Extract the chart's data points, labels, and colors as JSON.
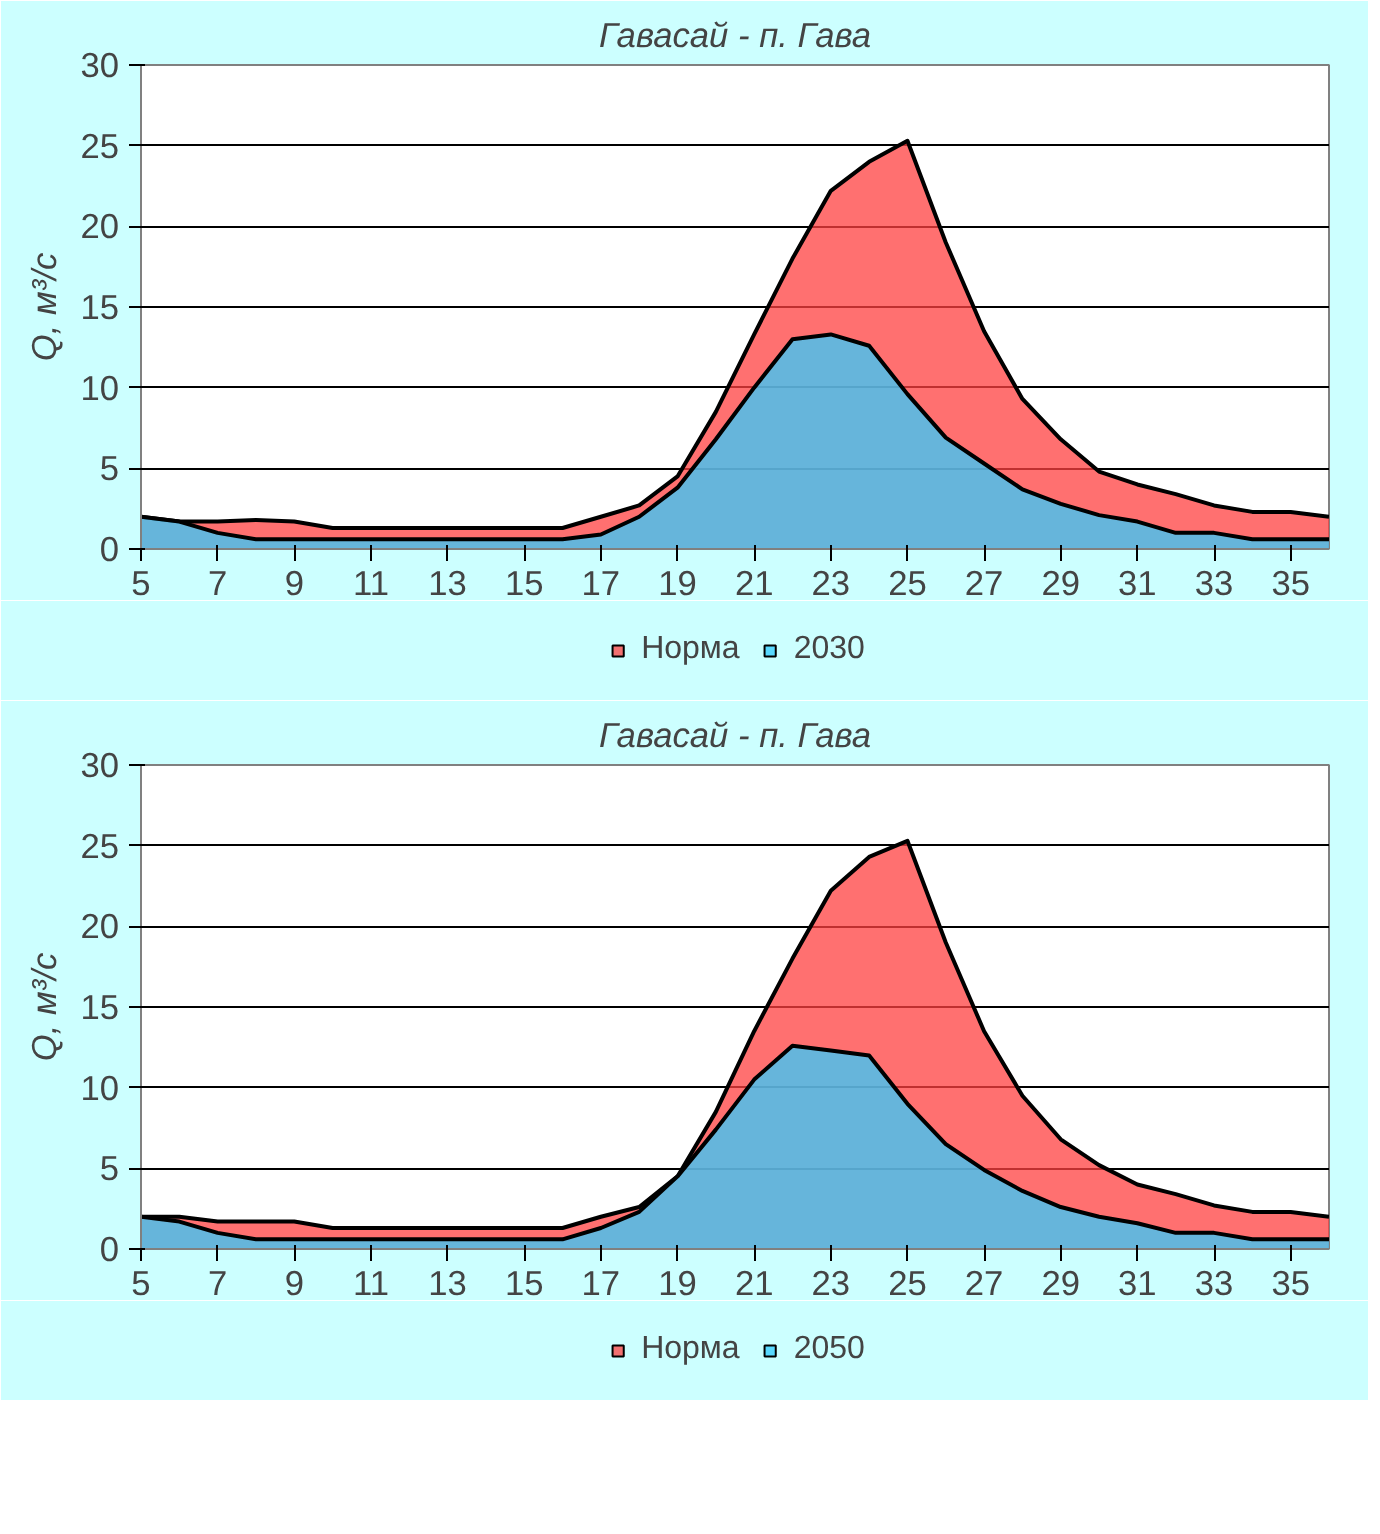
{
  "chart_data": [
    {
      "type": "area",
      "title": "Гавасай - п. Гава",
      "ylabel": "Q, м³/с",
      "x": [
        5,
        6,
        7,
        8,
        9,
        10,
        11,
        12,
        13,
        14,
        15,
        16,
        17,
        18,
        19,
        20,
        21,
        22,
        23,
        24,
        25,
        26,
        27,
        28,
        29,
        30,
        31,
        32,
        33,
        34,
        35,
        36
      ],
      "series": [
        {
          "name": "Норма",
          "color": "#ff4040",
          "values": [
            2.0,
            1.7,
            1.7,
            1.8,
            1.7,
            1.3,
            1.3,
            1.3,
            1.3,
            1.3,
            1.3,
            1.3,
            2.0,
            2.7,
            4.5,
            8.5,
            13.3,
            18,
            22.2,
            24,
            25.3,
            19,
            13.5,
            9.3,
            6.8,
            4.8,
            4,
            3.4,
            2.7,
            2.3,
            2.3,
            2
          ]
        },
        {
          "name": "2030",
          "color": "#33ccff",
          "values": [
            2.0,
            1.7,
            1.0,
            0.6,
            0.6,
            0.6,
            0.6,
            0.6,
            0.6,
            0.6,
            0.6,
            0.6,
            0.9,
            2.0,
            3.8,
            6.8,
            10,
            13,
            13.3,
            12.6,
            9.6,
            6.9,
            5.3,
            3.7,
            2.8,
            2.1,
            1.7,
            1.0,
            1.0,
            0.6,
            0.6,
            0.6
          ]
        }
      ],
      "xlim": [
        5,
        36
      ],
      "xticks": [
        5,
        7,
        9,
        11,
        13,
        15,
        17,
        19,
        21,
        23,
        25,
        27,
        29,
        31,
        33,
        35
      ],
      "ylim": [
        0,
        30
      ],
      "yticks": [
        0,
        5,
        10,
        15,
        20,
        25,
        30
      ],
      "grid": "y",
      "legend": "bottom"
    },
    {
      "type": "area",
      "title": "Гавасай - п. Гава",
      "ylabel": "Q, м³/с",
      "x": [
        5,
        6,
        7,
        8,
        9,
        10,
        11,
        12,
        13,
        14,
        15,
        16,
        17,
        18,
        19,
        20,
        21,
        22,
        23,
        24,
        25,
        26,
        27,
        28,
        29,
        30,
        31,
        32,
        33,
        34,
        35,
        36
      ],
      "series": [
        {
          "name": "Норма",
          "color": "#ff4040",
          "values": [
            2.0,
            2.0,
            1.7,
            1.7,
            1.7,
            1.3,
            1.3,
            1.3,
            1.3,
            1.3,
            1.3,
            1.3,
            2.0,
            2.6,
            4.5,
            8.5,
            13.5,
            18,
            22.2,
            24.3,
            25.3,
            19,
            13.5,
            9.5,
            6.8,
            5.2,
            4,
            3.4,
            2.7,
            2.3,
            2.3,
            2
          ]
        },
        {
          "name": "2050",
          "color": "#33ccff",
          "values": [
            2.0,
            1.7,
            1.0,
            0.6,
            0.6,
            0.6,
            0.6,
            0.6,
            0.6,
            0.6,
            0.6,
            0.6,
            1.3,
            2.3,
            4.5,
            7.4,
            10.5,
            12.6,
            12.3,
            12.0,
            9.0,
            6.5,
            4.9,
            3.6,
            2.6,
            2.0,
            1.6,
            1.0,
            1.0,
            0.6,
            0.6,
            0.6
          ]
        }
      ],
      "xlim": [
        5,
        36
      ],
      "xticks": [
        5,
        7,
        9,
        11,
        13,
        15,
        17,
        19,
        21,
        23,
        25,
        27,
        29,
        31,
        33,
        35
      ],
      "ylim": [
        0,
        30
      ],
      "yticks": [
        0,
        5,
        10,
        15,
        20,
        25,
        30
      ],
      "grid": "y",
      "legend": "bottom"
    }
  ]
}
